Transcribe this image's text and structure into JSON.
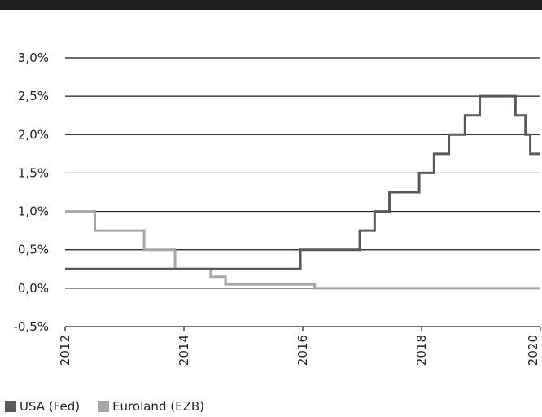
{
  "chart_data": {
    "type": "line",
    "step": true,
    "title": "",
    "xlabel": "",
    "ylabel": "",
    "xlim": [
      2012,
      2020
    ],
    "ylim": [
      -0.5,
      3.0
    ],
    "x_ticks": [
      2012,
      2014,
      2016,
      2018,
      2020
    ],
    "x_tick_labels": [
      "2012",
      "2014",
      "2016",
      "2018",
      "2020"
    ],
    "y_ticks": [
      -0.5,
      0.0,
      0.5,
      1.0,
      1.5,
      2.0,
      2.5,
      3.0
    ],
    "y_tick_labels": [
      "-0,5%",
      "0,0%",
      "0,5%",
      "1,0%",
      "1,5%",
      "2,0%",
      "2,5%",
      "3,0%"
    ],
    "grid": "horizontal",
    "legend_position": "bottom-left",
    "series": [
      {
        "name": "USA (Fed)",
        "color": "#595959",
        "x": [
          2012.0,
          2015.96,
          2016.96,
          2017.21,
          2017.46,
          2017.96,
          2018.21,
          2018.46,
          2018.73,
          2018.98,
          2019.58,
          2019.75,
          2019.83,
          2020.0
        ],
        "values": [
          0.25,
          0.5,
          0.75,
          1.0,
          1.25,
          1.5,
          1.75,
          2.0,
          2.25,
          2.5,
          2.25,
          2.0,
          1.75,
          1.75
        ]
      },
      {
        "name": "Euroland (EZB)",
        "color": "#a6a6a6",
        "x": [
          2012.0,
          2012.5,
          2013.33,
          2013.85,
          2014.45,
          2014.7,
          2016.2,
          2020.0
        ],
        "values": [
          1.0,
          0.75,
          0.5,
          0.25,
          0.15,
          0.05,
          0.0,
          0.0
        ]
      }
    ]
  }
}
